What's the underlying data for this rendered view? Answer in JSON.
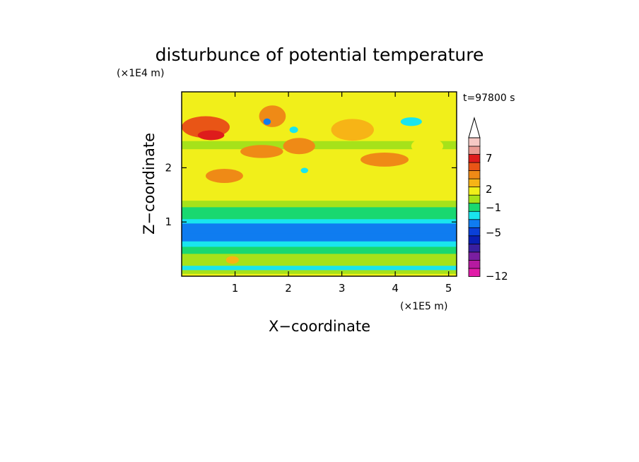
{
  "chart_data": {
    "type": "heatmap",
    "title": "disturbunce of potential temperature",
    "time_label": "t=97800 s",
    "xlabel": "X−coordinate",
    "ylabel": "Z−coordinate",
    "x_unit": "(×1E5 m)",
    "y_unit": "(×1E4 m)",
    "xlim": [
      0,
      5.15
    ],
    "ylim": [
      0,
      3.4
    ],
    "x_ticks": [
      1,
      2,
      3,
      4,
      5
    ],
    "y_ticks": [
      1,
      2
    ],
    "colorbar": {
      "colors": [
        "#e11ba8",
        "#b61aa0",
        "#7a1ea0",
        "#3a1fa0",
        "#0a1fb4",
        "#0a40d8",
        "#0f7cf0",
        "#19e5ee",
        "#19d870",
        "#a6e21a",
        "#f1ef1a",
        "#f7b416",
        "#ef8a16",
        "#e95516",
        "#de1c1c",
        "#ea9a92",
        "#f6c9c4",
        "#ffffff"
      ],
      "tick_labels": [
        {
          "value": -12,
          "label": "−12"
        },
        {
          "value": -5,
          "label": "−5"
        },
        {
          "value": -1,
          "label": "−1"
        },
        {
          "value": 2,
          "label": "2"
        },
        {
          "value": 7,
          "label": "7"
        }
      ],
      "extend": "max"
    },
    "rows": [
      {
        "z": [
          0.0,
          0.05
        ],
        "value": 1.2
      },
      {
        "z": [
          0.05,
          0.12
        ],
        "value": 0.3
      },
      {
        "z": [
          0.12,
          0.2
        ],
        "value": -3.0
      },
      {
        "z": [
          0.2,
          0.32
        ],
        "value": -0.4
      },
      {
        "z": [
          0.32,
          0.42
        ],
        "value": 0.2
      },
      {
        "z": [
          0.42,
          0.55
        ],
        "value": -0.6
      },
      {
        "z": [
          0.55,
          0.65
        ],
        "value": -2.2
      },
      {
        "z": [
          0.65,
          0.8
        ],
        "value": -4.2
      },
      {
        "z": [
          0.8,
          0.98
        ],
        "value": -4.0
      },
      {
        "z": [
          0.98,
          1.06
        ],
        "value": -2.5
      },
      {
        "z": [
          1.06,
          1.28
        ],
        "value": -0.6
      },
      {
        "z": [
          1.28,
          1.4
        ],
        "value": 0.3
      },
      {
        "z": [
          1.4,
          1.62
        ],
        "value": 1.0
      },
      {
        "z": [
          1.62,
          2.35
        ],
        "value": 1.8
      },
      {
        "z": [
          2.35,
          2.5
        ],
        "value": 0.4
      },
      {
        "z": [
          2.5,
          3.4
        ],
        "value": 1.2
      }
    ],
    "features": [
      {
        "x": 0.45,
        "z": 2.75,
        "rx": 0.45,
        "rz": 0.2,
        "value": 5.0
      },
      {
        "x": 0.55,
        "z": 2.6,
        "rx": 0.25,
        "rz": 0.09,
        "value": 6.5
      },
      {
        "x": 1.7,
        "z": 2.95,
        "rx": 0.25,
        "rz": 0.2,
        "value": 4.0
      },
      {
        "x": 1.6,
        "z": 2.85,
        "rx": 0.07,
        "rz": 0.06,
        "value": -3.5
      },
      {
        "x": 2.1,
        "z": 2.7,
        "rx": 0.08,
        "rz": 0.06,
        "value": -3.0
      },
      {
        "x": 2.2,
        "z": 2.4,
        "rx": 0.3,
        "rz": 0.15,
        "value": 4.5
      },
      {
        "x": 1.5,
        "z": 2.3,
        "rx": 0.4,
        "rz": 0.12,
        "value": 4.0
      },
      {
        "x": 2.3,
        "z": 1.95,
        "rx": 0.07,
        "rz": 0.05,
        "value": -3.0
      },
      {
        "x": 3.8,
        "z": 2.15,
        "rx": 0.45,
        "rz": 0.13,
        "value": 4.0
      },
      {
        "x": 4.3,
        "z": 2.85,
        "rx": 0.2,
        "rz": 0.08,
        "value": -3.0
      },
      {
        "x": 4.6,
        "z": 2.4,
        "rx": 0.3,
        "rz": 0.15,
        "value": 1.5
      },
      {
        "x": 0.8,
        "z": 1.85,
        "rx": 0.35,
        "rz": 0.13,
        "value": 4.0
      },
      {
        "x": 3.2,
        "z": 2.7,
        "rx": 0.4,
        "rz": 0.2,
        "value": 3.0
      },
      {
        "x": 0.95,
        "z": 0.3,
        "rx": 0.12,
        "rz": 0.07,
        "value": 3.0
      }
    ]
  }
}
